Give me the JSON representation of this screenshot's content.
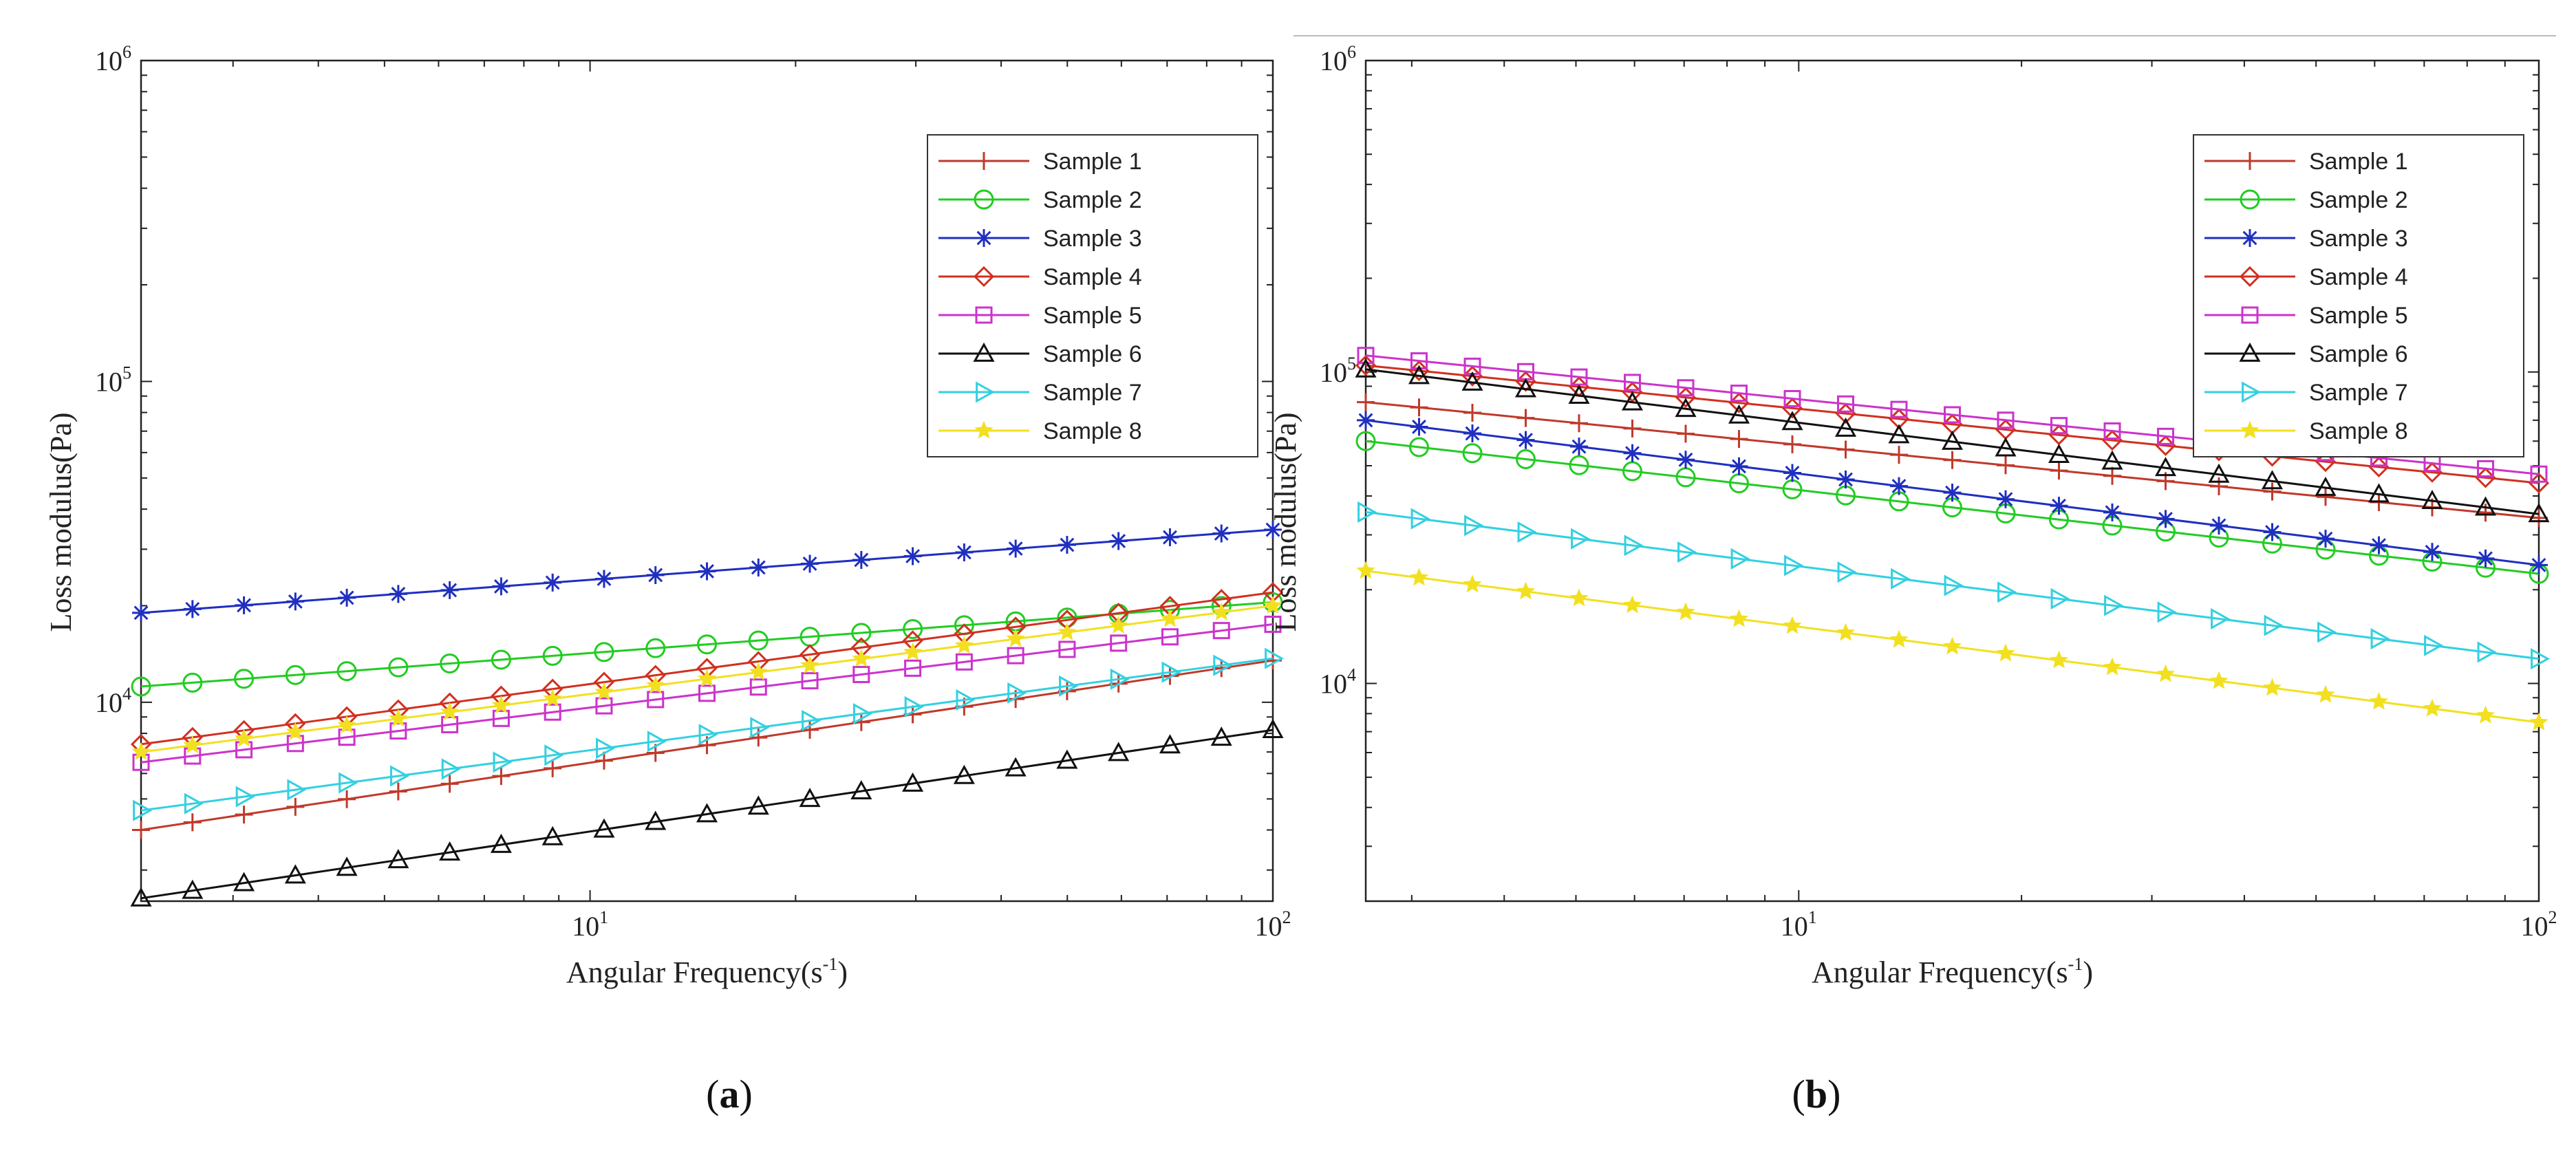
{
  "figure_captions": {
    "a": "a",
    "b": "b"
  },
  "colors": {
    "Sample 1": "#c0392b",
    "Sample 2": "#22cc22",
    "Sample 3": "#1f2fbf",
    "Sample 4": "#d03020",
    "Sample 5": "#cc33cc",
    "Sample 6": "#111111",
    "Sample 7": "#33d0e0",
    "Sample 8": "#f2e020"
  },
  "chart_data": [
    {
      "id": "a",
      "type": "line",
      "xscale": "log",
      "yscale": "log",
      "xlim": [
        2.2,
        100
      ],
      "ylim": [
        2400,
        1000000
      ],
      "xlabel": "Angular Frequency(s",
      "xlabel_sup": "-1",
      "xlabel_close": ")",
      "ylabel": "Loss modulus(Pa)",
      "xticks": [
        {
          "value": 10,
          "base": "10",
          "exp": "1"
        },
        {
          "value": 100,
          "base": "10",
          "exp": "2"
        }
      ],
      "yticks": [
        {
          "value": 10000,
          "base": "10",
          "exp": "4"
        },
        {
          "value": 100000,
          "base": "10",
          "exp": "5"
        },
        {
          "value": 1000000,
          "base": "10",
          "exp": "6"
        }
      ],
      "legend_position": "top-right",
      "points": 23,
      "series": [
        {
          "name": "Sample 1",
          "marker": "plus",
          "y0": 4000,
          "y1": 13500
        },
        {
          "name": "Sample 2",
          "marker": "circle",
          "y0": 11200,
          "y1": 20500
        },
        {
          "name": "Sample 3",
          "marker": "asterisk",
          "y0": 19000,
          "y1": 34500
        },
        {
          "name": "Sample 4",
          "marker": "diamond",
          "y0": 7400,
          "y1": 22000
        },
        {
          "name": "Sample 5",
          "marker": "square",
          "y0": 6500,
          "y1": 17500
        },
        {
          "name": "Sample 6",
          "marker": "triangle-up",
          "y0": 2450,
          "y1": 8200
        },
        {
          "name": "Sample 7",
          "marker": "triangle-right",
          "y0": 4600,
          "y1": 13700
        },
        {
          "name": "Sample 8",
          "marker": "star",
          "y0": 7000,
          "y1": 20000
        }
      ]
    },
    {
      "id": "b",
      "type": "line",
      "xscale": "log",
      "yscale": "log",
      "xlim": [
        2.6,
        100
      ],
      "ylim": [
        2000,
        1000000
      ],
      "xlabel": "Angular Frequency(s",
      "xlabel_sup": "-1",
      "xlabel_close": ")",
      "ylabel": "Loss modulus(Pa)",
      "xticks": [
        {
          "value": 10,
          "base": "10",
          "exp": "1"
        },
        {
          "value": 100,
          "base": "10",
          "exp": "2"
        }
      ],
      "yticks": [
        {
          "value": 10000,
          "base": "10",
          "exp": "4"
        },
        {
          "value": 100000,
          "base": "10",
          "exp": "5"
        },
        {
          "value": 1000000,
          "base": "10",
          "exp": "6"
        }
      ],
      "legend_position": "top-right",
      "points": 23,
      "series": [
        {
          "name": "Sample 1",
          "marker": "plus",
          "y0": 80000,
          "y1": 34000
        },
        {
          "name": "Sample 2",
          "marker": "circle",
          "y0": 60000,
          "y1": 22500
        },
        {
          "name": "Sample 3",
          "marker": "asterisk",
          "y0": 70000,
          "y1": 24000
        },
        {
          "name": "Sample 4",
          "marker": "diamond",
          "y0": 105000,
          "y1": 44000
        },
        {
          "name": "Sample 5",
          "marker": "square",
          "y0": 113000,
          "y1": 47000
        },
        {
          "name": "Sample 6",
          "marker": "triangle-up",
          "y0": 102000,
          "y1": 35000
        },
        {
          "name": "Sample 7",
          "marker": "triangle-right",
          "y0": 35500,
          "y1": 12000
        },
        {
          "name": "Sample 8",
          "marker": "star",
          "y0": 23000,
          "y1": 7500
        }
      ]
    }
  ]
}
